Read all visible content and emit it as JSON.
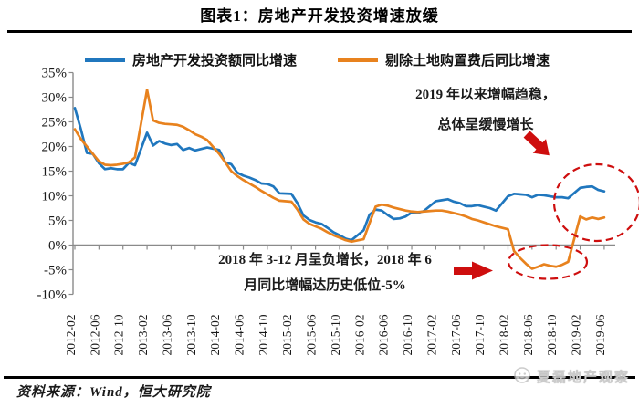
{
  "page": {
    "title": "图表1：房地产开发投资增速放缓",
    "source_note": "资料来源：Wind，恒大研究院",
    "watermark": "夏磊地产观察"
  },
  "chart_data": {
    "type": "line",
    "title": "图表1：房地产开发投资增速放缓",
    "legend_position": "top",
    "grid": false,
    "y_axis": {
      "unit": "%",
      "min": -10,
      "max": 35,
      "ticks": [
        35,
        30,
        25,
        20,
        15,
        10,
        5,
        0,
        -5,
        -10
      ]
    },
    "x_axis": {
      "tick_labels": [
        "2012-02",
        "2012-06",
        "2012-10",
        "2013-02",
        "2013-06",
        "2013-10",
        "2014-02",
        "2014-06",
        "2014-10",
        "2015-02",
        "2015-06",
        "2015-10",
        "2016-02",
        "2016-06",
        "2016-10",
        "2017-02",
        "2017-06",
        "2017-10",
        "2018-02",
        "2018-06",
        "2018-10",
        "2019-02",
        "2019-06"
      ]
    },
    "months": [
      "2012-02",
      "2012-03",
      "2012-04",
      "2012-05",
      "2012-06",
      "2012-07",
      "2012-08",
      "2012-09",
      "2012-10",
      "2012-11",
      "2012-12",
      "2013-02",
      "2013-03",
      "2013-04",
      "2013-05",
      "2013-06",
      "2013-07",
      "2013-08",
      "2013-09",
      "2013-10",
      "2013-11",
      "2013-12",
      "2014-02",
      "2014-03",
      "2014-04",
      "2014-05",
      "2014-06",
      "2014-07",
      "2014-08",
      "2014-09",
      "2014-10",
      "2014-11",
      "2014-12",
      "2015-02",
      "2015-03",
      "2015-04",
      "2015-05",
      "2015-06",
      "2015-07",
      "2015-08",
      "2015-09",
      "2015-10",
      "2015-11",
      "2015-12",
      "2016-02",
      "2016-03",
      "2016-04",
      "2016-05",
      "2016-06",
      "2016-07",
      "2016-08",
      "2016-09",
      "2016-10",
      "2016-11",
      "2016-12",
      "2017-02",
      "2017-03",
      "2017-04",
      "2017-05",
      "2017-06",
      "2017-07",
      "2017-08",
      "2017-09",
      "2017-10",
      "2017-11",
      "2017-12",
      "2018-02",
      "2018-03",
      "2018-04",
      "2018-05",
      "2018-06",
      "2018-07",
      "2018-08",
      "2018-09",
      "2018-10",
      "2018-11",
      "2018-12",
      "2019-02",
      "2019-03",
      "2019-04",
      "2019-05",
      "2019-06"
    ],
    "series": [
      {
        "name": "房地产开发投资额同比增速",
        "color": "#2077BE",
        "values": [
          27.8,
          23.5,
          18.7,
          18.5,
          16.6,
          15.4,
          15.6,
          15.4,
          15.4,
          16.7,
          16.2,
          22.8,
          20.2,
          21.1,
          20.6,
          20.3,
          20.5,
          19.3,
          19.7,
          19.2,
          19.5,
          19.8,
          19.3,
          16.8,
          16.4,
          14.7,
          14.1,
          13.7,
          13.2,
          12.5,
          12.4,
          11.9,
          10.5,
          10.4,
          8.5,
          6.0,
          5.1,
          4.6,
          4.3,
          3.5,
          2.6,
          2.0,
          1.3,
          1.0,
          3.0,
          6.2,
          7.2,
          7.0,
          6.1,
          5.3,
          5.4,
          5.8,
          6.6,
          6.5,
          6.9,
          8.9,
          9.1,
          9.3,
          8.8,
          8.5,
          7.9,
          7.9,
          8.1,
          7.8,
          7.5,
          7.0,
          9.9,
          10.4,
          10.3,
          10.2,
          9.7,
          10.2,
          10.1,
          9.9,
          9.7,
          9.7,
          9.5,
          11.6,
          11.8,
          11.9,
          11.2,
          10.9
        ]
      },
      {
        "name": "剔除土地购置费后同比增速",
        "color": "#E8821E",
        "values": [
          23.5,
          21.5,
          20.0,
          18.5,
          17.0,
          16.3,
          16.2,
          16.3,
          16.5,
          16.8,
          17.8,
          31.5,
          25.3,
          24.8,
          24.6,
          24.5,
          24.4,
          24.0,
          23.3,
          22.5,
          22.0,
          21.3,
          18.5,
          16.8,
          15.0,
          14.0,
          13.2,
          12.5,
          11.8,
          11.0,
          10.3,
          9.6,
          9.0,
          8.8,
          7.2,
          5.2,
          4.3,
          3.8,
          3.3,
          2.6,
          2.0,
          1.5,
          1.0,
          0.7,
          1.2,
          4.5,
          7.8,
          8.2,
          8.0,
          7.6,
          7.3,
          7.0,
          6.8,
          6.7,
          6.8,
          7.0,
          7.0,
          6.8,
          6.5,
          6.2,
          5.8,
          5.3,
          5.0,
          4.6,
          4.2,
          3.8,
          3.2,
          -1.2,
          -2.6,
          -3.8,
          -4.8,
          -4.4,
          -3.9,
          -4.2,
          -4.4,
          -4.0,
          -3.4,
          5.8,
          5.2,
          5.6,
          5.3,
          5.6
        ]
      }
    ],
    "annotations": {
      "accent_color": "#CE0E0E",
      "top": {
        "line1": "2019 年以来增幅趋稳，",
        "line2": "总体呈缓慢增长"
      },
      "bottom": {
        "line1": "2018 年 3-12 月呈负增长，2018 年 6",
        "line2": "月同比增幅达历史低位-5%"
      }
    }
  }
}
